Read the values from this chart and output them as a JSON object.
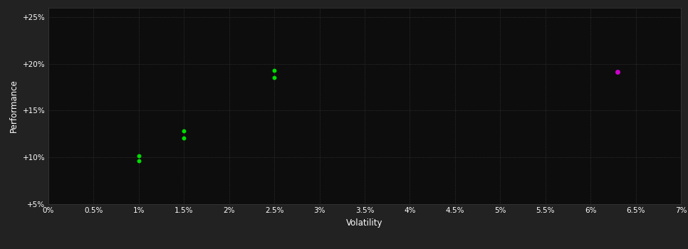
{
  "background_color": "#222222",
  "plot_bg_color": "#0d0d0d",
  "grid_color": "#3a3a3a",
  "text_color": "#ffffff",
  "xlabel": "Volatility",
  "ylabel": "Performance",
  "xlim": [
    0.0,
    0.07
  ],
  "ylim": [
    0.05,
    0.26
  ],
  "xtick_vals": [
    0.0,
    0.005,
    0.01,
    0.015,
    0.02,
    0.025,
    0.03,
    0.035,
    0.04,
    0.045,
    0.05,
    0.055,
    0.06,
    0.065,
    0.07
  ],
  "xtick_labels": [
    "0%",
    "0.5%",
    "1%",
    "1.5%",
    "2%",
    "2.5%",
    "3%",
    "3.5%",
    "4%",
    "4.5%",
    "5%",
    "5.5%",
    "6%",
    "6.5%",
    "7%"
  ],
  "ytick_vals": [
    0.05,
    0.1,
    0.15,
    0.2,
    0.25
  ],
  "ytick_labels": [
    "+5%",
    "+10%",
    "+15%",
    "+20%",
    "+25%"
  ],
  "green_points": [
    [
      0.01,
      0.102
    ],
    [
      0.01,
      0.096
    ],
    [
      0.015,
      0.128
    ],
    [
      0.015,
      0.121
    ],
    [
      0.025,
      0.193
    ],
    [
      0.025,
      0.185
    ]
  ],
  "magenta_points": [
    [
      0.063,
      0.191
    ]
  ],
  "green_color": "#00dd00",
  "magenta_color": "#cc00cc",
  "marker_size": 18,
  "magenta_marker_size": 25,
  "font_size_ticks": 7.5,
  "font_size_label": 8.5
}
